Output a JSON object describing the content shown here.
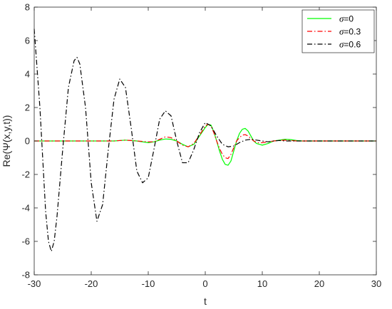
{
  "chart_data": {
    "type": "line",
    "xlabel": "t",
    "ylabel": "Re(Ψ(x,y,t))",
    "xlim": [
      -30,
      30
    ],
    "ylim": [
      -8,
      8
    ],
    "xticks": [
      -30,
      -20,
      -10,
      0,
      10,
      20,
      30
    ],
    "yticks": [
      -8,
      -6,
      -4,
      -2,
      0,
      2,
      4,
      6,
      8
    ],
    "grid": false,
    "legend_position": "top-right",
    "series": [
      {
        "name": "σ=0",
        "legend_symbol": "σ",
        "legend_value": "=0",
        "color": "#00ff00",
        "style": "solid",
        "x": [
          -30,
          -28,
          -26,
          -24,
          -22,
          -20,
          -18,
          -16,
          -14,
          -12,
          -10,
          -9,
          -8,
          -7,
          -6,
          -5,
          -4,
          -3,
          -2,
          -1,
          0,
          0.5,
          1,
          1.5,
          2,
          2.5,
          3,
          3.5,
          4,
          4.5,
          5,
          5.5,
          6,
          6.5,
          7,
          7.5,
          8,
          8.5,
          9,
          9.5,
          10,
          11,
          12,
          13,
          14,
          15,
          16,
          17,
          18,
          20,
          22,
          24,
          26,
          28,
          30
        ],
        "y": [
          0,
          0,
          0,
          0,
          0,
          0,
          0,
          0,
          0.05,
          0,
          -0.1,
          -0.05,
          0.05,
          0.12,
          0.1,
          0,
          -0.2,
          -0.35,
          -0.2,
          0.3,
          0.8,
          1.0,
          0.95,
          0.55,
          0,
          -0.6,
          -1.1,
          -1.4,
          -1.45,
          -1.2,
          -0.6,
          0,
          0.45,
          0.7,
          0.75,
          0.6,
          0.3,
          0,
          -0.15,
          -0.2,
          -0.25,
          -0.15,
          0,
          0.05,
          0.1,
          0.08,
          0.03,
          0,
          0,
          0,
          0,
          0,
          0,
          0,
          0
        ]
      },
      {
        "name": "σ=0.3",
        "legend_symbol": "σ",
        "legend_value": "=0.3",
        "color": "#ff0000",
        "style": "dashdot",
        "x": [
          -30,
          -28,
          -26,
          -24,
          -22,
          -20,
          -18,
          -16,
          -14,
          -12,
          -10,
          -9,
          -8,
          -7,
          -6,
          -5,
          -4,
          -3,
          -2,
          -1,
          0,
          0.5,
          1,
          1.5,
          2,
          2.5,
          3,
          3.5,
          4,
          4.5,
          5,
          5.5,
          6,
          6.5,
          7,
          7.5,
          8,
          8.5,
          9,
          9.5,
          10,
          11,
          12,
          13,
          14,
          15,
          16,
          17,
          18,
          20,
          22,
          24,
          26,
          28,
          30
        ],
        "y": [
          0,
          0,
          0,
          0,
          0,
          0,
          0,
          0,
          0.05,
          0,
          -0.05,
          -0.05,
          0.1,
          0.25,
          0.2,
          0,
          -0.25,
          -0.35,
          -0.15,
          0.35,
          0.9,
          1.0,
          0.9,
          0.5,
          0,
          -0.45,
          -0.8,
          -1.0,
          -1.05,
          -0.8,
          -0.4,
          0,
          0.2,
          0.35,
          0.38,
          0.3,
          0.15,
          0,
          -0.08,
          -0.12,
          -0.1,
          -0.05,
          0,
          0.03,
          0.05,
          0.03,
          0,
          0,
          0,
          0,
          0,
          0,
          0,
          0,
          0
        ]
      },
      {
        "name": "σ=0.6",
        "legend_symbol": "σ",
        "legend_value": "=0.6",
        "color": "#000000",
        "style": "dashdot",
        "x": [
          -30,
          -29,
          -28,
          -27.5,
          -27,
          -26.5,
          -26,
          -25,
          -24,
          -23,
          -22.5,
          -22,
          -21,
          -20,
          -19,
          -18,
          -17,
          -16,
          -15,
          -14,
          -13,
          -12,
          -11,
          -10,
          -9,
          -8,
          -7,
          -6,
          -5,
          -4,
          -3,
          -2,
          -1,
          0,
          1,
          2,
          3,
          4,
          5,
          6,
          7,
          8,
          9,
          10,
          11,
          12,
          13,
          14,
          15,
          16,
          18,
          20,
          22,
          24,
          26,
          28,
          30
        ],
        "y": [
          6.7,
          2.0,
          -4.2,
          -6.0,
          -6.6,
          -6.0,
          -4.5,
          -0.5,
          3.2,
          4.8,
          5.0,
          4.6,
          2.0,
          -2.5,
          -4.8,
          -3.8,
          -0.5,
          2.5,
          3.7,
          3.2,
          0.8,
          -1.8,
          -2.5,
          -2.2,
          -0.5,
          1.3,
          1.8,
          1.5,
          0.0,
          -1.3,
          -1.3,
          -0.5,
          0.5,
          1.1,
          0.9,
          0.3,
          -0.2,
          -0.35,
          -0.3,
          -0.1,
          0.05,
          0.1,
          0.05,
          0,
          -0.05,
          0,
          0.03,
          0,
          0,
          0,
          0,
          0,
          0,
          0,
          0,
          0,
          0
        ]
      }
    ]
  }
}
